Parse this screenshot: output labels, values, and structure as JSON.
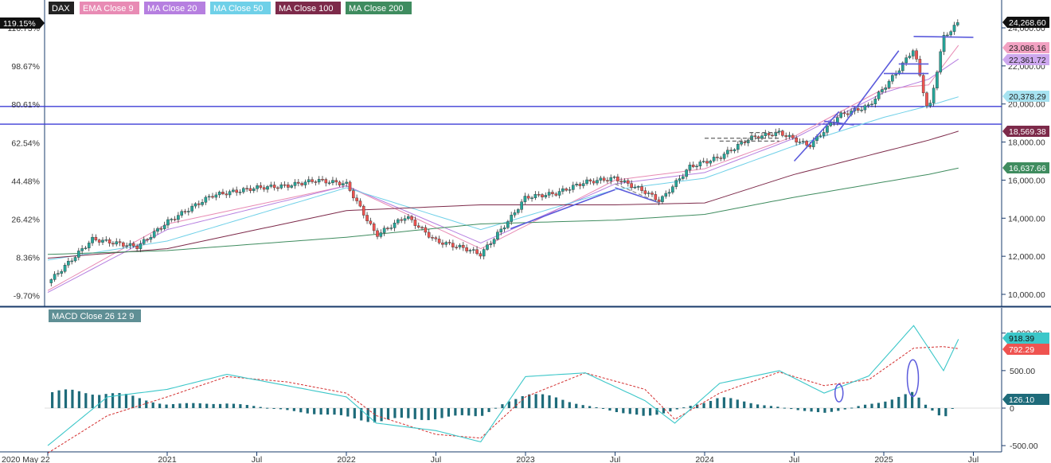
{
  "price_panel": {
    "symbol": "DAX",
    "legend": [
      {
        "label": "DAX",
        "color": "#222222"
      },
      {
        "label": "EMA Close 9",
        "color": "#e88bb4"
      },
      {
        "label": "MA Close 20",
        "color": "#b67fe0"
      },
      {
        "label": "MA Close 50",
        "color": "#6fd0e8"
      },
      {
        "label": "MA Close 100",
        "color": "#7d2a4a"
      },
      {
        "label": "MA Close 200",
        "color": "#3f8c5f"
      }
    ],
    "right_axis_ticks": [
      "24,000.00",
      "22,000.00",
      "20,000.00",
      "18,000.00",
      "16,000.00",
      "14,000.00",
      "12,000.00",
      "10,000.00"
    ],
    "left_axis_ticks": [
      "116.73%",
      "98.67%",
      "80.61%",
      "62.54%",
      "44.48%",
      "26.42%",
      "8.36%",
      "-9.70%"
    ],
    "left_tag": "119.15%",
    "value_tags": [
      {
        "label": "24,268.60",
        "value": 24268.6,
        "bg": "#111111",
        "fg": "#ffffff"
      },
      {
        "label": "23,086.16",
        "value": 23086.16,
        "bg": "#f2a2c2",
        "fg": "#222222"
      },
      {
        "label": "22,361.72",
        "value": 22361.72,
        "bg": "#cda8ee",
        "fg": "#222222"
      },
      {
        "label": "20,378.29",
        "value": 20378.29,
        "bg": "#a7e3f1",
        "fg": "#222222"
      },
      {
        "label": "18,569.38",
        "value": 18569.38,
        "bg": "#7d2a4a",
        "fg": "#ffffff"
      },
      {
        "label": "16,637.66",
        "value": 16637.66,
        "bg": "#3f8c5f",
        "fg": "#ffffff"
      }
    ],
    "horizontal_levels": [
      19870,
      18940
    ]
  },
  "macd_panel": {
    "legend": "MACD Close 26 12 9",
    "right_axis_ticks": [
      "1,000.00",
      "500.00",
      "0",
      "-500.00"
    ],
    "value_tags": [
      {
        "label": "918.39",
        "value": 918.39,
        "bg": "#3cc7c9",
        "fg": "#111111"
      },
      {
        "label": "792.29",
        "value": 792.29,
        "bg": "#ef5350",
        "fg": "#ffffff"
      },
      {
        "label": "126.10",
        "value": 126.1,
        "bg": "#1e6b7a",
        "fg": "#ffffff"
      }
    ]
  },
  "time_axis": {
    "labels": [
      "2020 May 22",
      "2021",
      "Jul",
      "2022",
      "Jul",
      "2023",
      "Jul",
      "2024",
      "Jul",
      "2025",
      "Jul"
    ]
  },
  "colors": {
    "up": "#26a69a",
    "down": "#ef5350",
    "trendline": "#5b5bdc",
    "macd_line": "#3cc7c9",
    "signal_line": "#d32f2f",
    "histogram": "#1e6b7a",
    "separator": "#1a3b6b"
  },
  "chart_data": [
    {
      "type": "line",
      "title": "DAX",
      "series": [
        {
          "name": "DAX",
          "x": [
            "2020-05",
            "2020-08",
            "2020-11",
            "2021-01",
            "2021-04",
            "2021-07",
            "2021-09",
            "2021-11",
            "2022-01",
            "2022-03",
            "2022-05",
            "2022-07",
            "2022-09",
            "2022-10",
            "2022-12",
            "2023-01",
            "2023-03",
            "2023-05",
            "2023-07",
            "2023-09",
            "2023-10",
            "2023-12",
            "2024-02",
            "2024-04",
            "2024-06",
            "2024-08",
            "2024-10",
            "2024-12",
            "2025-02",
            "2025-03",
            "2025-04",
            "2025-05",
            "2025-06"
          ],
          "values": [
            10600,
            12900,
            12500,
            13800,
            15200,
            15600,
            15700,
            16000,
            15800,
            13100,
            14100,
            12800,
            12400,
            12100,
            14000,
            15100,
            15300,
            15900,
            16100,
            15400,
            14900,
            16700,
            17200,
            18200,
            18500,
            17800,
            19400,
            19900,
            21800,
            22900,
            19500,
            23500,
            24268.6
          ]
        },
        {
          "name": "EMA Close 9",
          "x": [
            "2020-05",
            "2021-01",
            "2022-01",
            "2022-10",
            "2023-07",
            "2024-01",
            "2024-07",
            "2025-01",
            "2025-04",
            "2025-06"
          ],
          "values": [
            10200,
            13700,
            15700,
            12400,
            16000,
            16600,
            18300,
            20800,
            21000,
            23086.16
          ]
        },
        {
          "name": "MA Close 20",
          "x": [
            "2020-05",
            "2021-01",
            "2022-01",
            "2022-10",
            "2023-07",
            "2024-01",
            "2024-07",
            "2025-01",
            "2025-04",
            "2025-06"
          ],
          "values": [
            10100,
            13400,
            15700,
            12700,
            15800,
            16400,
            18200,
            20600,
            21300,
            22361.72
          ]
        },
        {
          "name": "MA Close 50",
          "x": [
            "2020-05",
            "2021-01",
            "2022-01",
            "2022-10",
            "2023-07",
            "2024-01",
            "2024-07",
            "2025-01",
            "2025-04",
            "2025-06"
          ],
          "values": [
            11800,
            12800,
            15600,
            13400,
            15500,
            16100,
            17800,
            19300,
            19900,
            20378.29
          ]
        },
        {
          "name": "MA Close 100",
          "x": [
            "2020-05",
            "2021-01",
            "2022-01",
            "2022-10",
            "2023-07",
            "2024-01",
            "2024-07",
            "2025-01",
            "2025-04",
            "2025-06"
          ],
          "values": [
            11900,
            12400,
            14400,
            14700,
            14700,
            14800,
            16300,
            17500,
            18100,
            18569.38
          ]
        },
        {
          "name": "MA Close 200",
          "x": [
            "2020-05",
            "2021-01",
            "2022-01",
            "2022-10",
            "2023-07",
            "2024-01",
            "2024-07",
            "2025-01",
            "2025-04",
            "2025-06"
          ],
          "values": [
            12100,
            12300,
            13000,
            13700,
            13900,
            14200,
            15100,
            15900,
            16300,
            16637.66
          ]
        }
      ],
      "ylim": [
        9500,
        24600
      ]
    },
    {
      "type": "line",
      "title": "MACD Close 26 12 9",
      "series": [
        {
          "name": "MACD",
          "x": [
            "2020-05",
            "2020-09",
            "2021-01",
            "2021-05",
            "2021-09",
            "2022-01",
            "2022-03",
            "2022-07",
            "2022-10",
            "2023-01",
            "2023-05",
            "2023-09",
            "2023-11",
            "2024-02",
            "2024-06",
            "2024-09",
            "2024-12",
            "2025-03",
            "2025-05",
            "2025-06"
          ],
          "values": [
            -500,
            150,
            250,
            450,
            300,
            150,
            -200,
            -300,
            -450,
            420,
            470,
            100,
            -200,
            330,
            500,
            200,
            430,
            1100,
            500,
            918.39
          ]
        },
        {
          "name": "Signal",
          "x": [
            "2020-05",
            "2020-09",
            "2021-01",
            "2021-05",
            "2021-09",
            "2022-01",
            "2022-03",
            "2022-07",
            "2022-10",
            "2023-01",
            "2023-05",
            "2023-09",
            "2023-11",
            "2024-02",
            "2024-06",
            "2024-09",
            "2024-12",
            "2025-03",
            "2025-05",
            "2025-06"
          ],
          "values": [
            -600,
            -100,
            150,
            420,
            350,
            200,
            -100,
            -350,
            -400,
            150,
            470,
            250,
            -150,
            200,
            480,
            300,
            380,
            800,
            820,
            792.29
          ]
        },
        {
          "name": "Histogram",
          "x": [
            "2020-09",
            "2021-01",
            "2021-05",
            "2022-03",
            "2022-10",
            "2023-01",
            "2023-09",
            "2024-02",
            "2024-09",
            "2025-03",
            "2025-05",
            "2025-06"
          ],
          "values": [
            250,
            60,
            80,
            -200,
            -120,
            250,
            -150,
            160,
            -90,
            220,
            -200,
            126.1
          ]
        }
      ],
      "ylim": [
        -600,
        1100
      ]
    }
  ]
}
